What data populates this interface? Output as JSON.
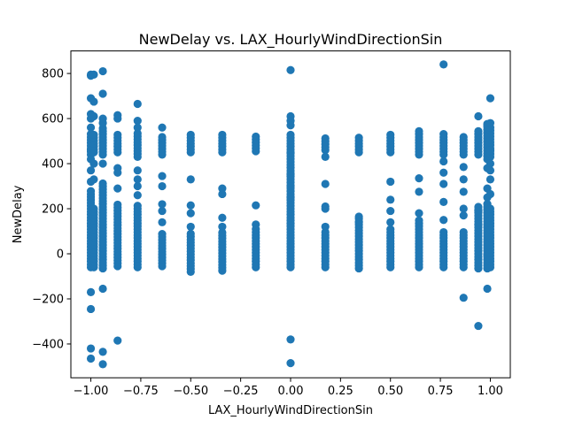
{
  "chart_data": {
    "type": "scatter",
    "title": "NewDelay vs. LAX_HourlyWindDirectionSin",
    "xlabel": "LAX_HourlyWindDirectionSin",
    "ylabel": "NewDelay",
    "xlim": [
      -1.1,
      1.1
    ],
    "ylim": [
      -550,
      900
    ],
    "xticks": [
      -1.0,
      -0.75,
      -0.5,
      -0.25,
      0.0,
      0.25,
      0.5,
      0.75,
      1.0
    ],
    "xtick_labels": [
      "−1.00",
      "−0.75",
      "−0.50",
      "−0.25",
      "0.00",
      "0.25",
      "0.50",
      "0.75",
      "1.00"
    ],
    "yticks": [
      -400,
      -200,
      0,
      200,
      400,
      600,
      800
    ],
    "ytick_labels": [
      "−400",
      "−200",
      "0",
      "200",
      "400",
      "600",
      "800"
    ],
    "grid": false,
    "marker_color": "#1f77b4",
    "columns": [
      {
        "x": -1.0,
        "dense": [
          [
            -60,
            280
          ],
          [
            440,
            540
          ]
        ],
        "points": [
          795,
          790,
          690,
          620,
          600,
          560,
          460,
          420,
          370,
          320,
          -170,
          -245,
          -420,
          -465
        ]
      },
      {
        "x": -0.985,
        "dense": [
          [
            -60,
            200
          ],
          [
            450,
            530
          ]
        ],
        "points": [
          795,
          675,
          610,
          400,
          330
        ]
      },
      {
        "x": -0.94,
        "dense": [
          [
            -65,
            320
          ],
          [
            440,
            560
          ]
        ],
        "points": [
          810,
          710,
          600,
          580,
          400,
          -155,
          -435,
          -490
        ]
      },
      {
        "x": -0.866,
        "dense": [
          [
            -55,
            230
          ],
          [
            450,
            540
          ]
        ],
        "points": [
          615,
          600,
          380,
          360,
          290,
          -385
        ]
      },
      {
        "x": -0.766,
        "dense": [
          [
            -60,
            220
          ],
          [
            430,
            540
          ]
        ],
        "points": [
          665,
          590,
          560,
          370,
          330,
          300,
          260
        ]
      },
      {
        "x": -0.643,
        "dense": [
          [
            -55,
            100
          ],
          [
            440,
            520
          ]
        ],
        "points": [
          560,
          345,
          300,
          220,
          190,
          140
        ]
      },
      {
        "x": -0.5,
        "dense": [
          [
            -80,
            100
          ],
          [
            450,
            530
          ]
        ],
        "points": [
          330,
          215,
          180,
          120
        ]
      },
      {
        "x": -0.342,
        "dense": [
          [
            -75,
            100
          ],
          [
            450,
            530
          ]
        ],
        "points": [
          290,
          265,
          160,
          120
        ]
      },
      {
        "x": -0.174,
        "dense": [
          [
            -60,
            100
          ],
          [
            455,
            530
          ]
        ],
        "points": [
          215,
          130,
          110
        ]
      },
      {
        "x": 0.0,
        "dense": [
          [
            -60,
            450
          ],
          [
            450,
            540
          ]
        ],
        "points": [
          815,
          610,
          590,
          570,
          350,
          300,
          250,
          -380,
          -485
        ]
      },
      {
        "x": 0.174,
        "dense": [
          [
            -60,
            100
          ],
          [
            460,
            520
          ]
        ],
        "points": [
          430,
          310,
          210,
          200,
          120
        ]
      },
      {
        "x": 0.342,
        "dense": [
          [
            -65,
            160
          ],
          [
            450,
            520
          ]
        ],
        "points": [
          165,
          140
        ]
      },
      {
        "x": 0.5,
        "dense": [
          [
            -60,
            110
          ],
          [
            450,
            535
          ]
        ],
        "points": [
          320,
          240,
          190,
          140
        ]
      },
      {
        "x": 0.643,
        "dense": [
          [
            -60,
            160
          ],
          [
            440,
            545
          ]
        ],
        "points": [
          335,
          275,
          180
        ]
      },
      {
        "x": 0.766,
        "dense": [
          [
            -60,
            100
          ],
          [
            440,
            540
          ]
        ],
        "points": [
          840,
          410,
          360,
          310,
          230,
          150
        ]
      },
      {
        "x": 0.866,
        "dense": [
          [
            -60,
            100
          ],
          [
            440,
            530
          ]
        ],
        "points": [
          385,
          330,
          275,
          200,
          170,
          -195
        ]
      },
      {
        "x": 0.94,
        "dense": [
          [
            -65,
            210
          ],
          [
            440,
            545
          ]
        ],
        "points": [
          610,
          190,
          130,
          -320
        ]
      },
      {
        "x": 0.985,
        "dense": [
          [
            -65,
            230
          ],
          [
            420,
            580
          ]
        ],
        "points": [
          570,
          380,
          290,
          250,
          -155,
          -5
        ]
      },
      {
        "x": 1.0,
        "dense": [
          [
            -60,
            200
          ],
          [
            430,
            570
          ]
        ],
        "points": [
          690,
          580,
          460,
          400,
          370,
          330,
          265
        ]
      }
    ]
  }
}
